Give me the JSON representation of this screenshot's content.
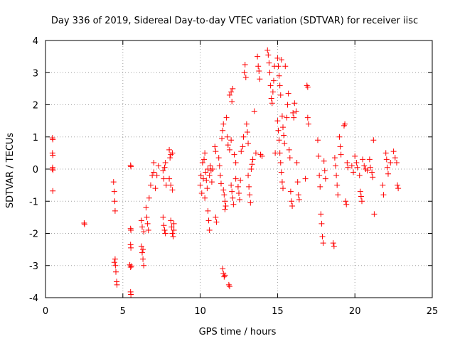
{
  "chart_data": {
    "type": "scatter",
    "title": "Day 336 of 2019, Sidereal Day-to-day VTEC variation (SDTVAR) for receiver iisc",
    "xlabel": "GPS time / hours",
    "ylabel": "SDTVAR / TECUs",
    "xlim": [
      0,
      25
    ],
    "ylim": [
      -4,
      4
    ],
    "xticks": [
      0,
      5,
      10,
      15,
      20,
      25
    ],
    "yticks": [
      -4,
      -3,
      -2,
      -1,
      0,
      1,
      2,
      3,
      4
    ],
    "grid": true,
    "marker": "+",
    "colors": {
      "points": "#ff0000",
      "grid": "#a0a0a0",
      "axes": "#000000"
    },
    "series": [
      {
        "name": "SDTVAR",
        "points": [
          [
            0.45,
            0.97
          ],
          [
            0.47,
            0.92
          ],
          [
            0.45,
            0.5
          ],
          [
            0.47,
            0.43
          ],
          [
            0.46,
            0.05
          ],
          [
            0.48,
            -0.03
          ],
          [
            0.45,
            0.0
          ],
          [
            0.47,
            -0.68
          ],
          [
            2.5,
            -1.68
          ],
          [
            2.52,
            -1.72
          ],
          [
            4.4,
            -0.4
          ],
          [
            4.45,
            -0.7
          ],
          [
            4.48,
            -1.0
          ],
          [
            4.5,
            -1.3
          ],
          [
            4.5,
            -2.8
          ],
          [
            4.52,
            -3.0
          ],
          [
            4.55,
            -3.2
          ],
          [
            4.6,
            -3.5
          ],
          [
            4.62,
            -3.6
          ],
          [
            4.45,
            -2.9
          ],
          [
            5.5,
            0.12
          ],
          [
            5.52,
            0.08
          ],
          [
            5.5,
            -1.85
          ],
          [
            5.52,
            -1.9
          ],
          [
            5.5,
            -2.35
          ],
          [
            5.52,
            -2.45
          ],
          [
            5.45,
            -2.98
          ],
          [
            5.5,
            -3.05
          ],
          [
            5.55,
            -3.02
          ],
          [
            5.5,
            -3.82
          ],
          [
            5.52,
            -3.9
          ],
          [
            6.2,
            -1.6
          ],
          [
            6.25,
            -1.8
          ],
          [
            6.2,
            -2.4
          ],
          [
            6.25,
            -2.6
          ],
          [
            6.3,
            -2.8
          ],
          [
            6.35,
            -3.0
          ],
          [
            6.3,
            -2.5
          ],
          [
            6.35,
            -1.95
          ],
          [
            6.5,
            -1.2
          ],
          [
            6.55,
            -1.5
          ],
          [
            6.6,
            -1.7
          ],
          [
            6.65,
            -1.9
          ],
          [
            6.7,
            -0.9
          ],
          [
            6.8,
            -0.5
          ],
          [
            6.9,
            -0.2
          ],
          [
            7.0,
            0.2
          ],
          [
            7.0,
            -0.1
          ],
          [
            7.1,
            -0.6
          ],
          [
            7.2,
            -0.2
          ],
          [
            7.3,
            0.1
          ],
          [
            7.6,
            -0.05
          ],
          [
            7.65,
            -0.3
          ],
          [
            7.7,
            0.05
          ],
          [
            7.75,
            0.2
          ],
          [
            7.8,
            -0.5
          ],
          [
            7.6,
            -1.5
          ],
          [
            7.65,
            -1.75
          ],
          [
            7.7,
            -1.9
          ],
          [
            7.75,
            -2.0
          ],
          [
            8.0,
            0.6
          ],
          [
            8.05,
            0.35
          ],
          [
            8.1,
            0.45
          ],
          [
            8.2,
            0.5
          ],
          [
            8.0,
            -0.3
          ],
          [
            8.1,
            -0.5
          ],
          [
            8.2,
            -0.65
          ],
          [
            8.1,
            -1.6
          ],
          [
            8.15,
            -1.8
          ],
          [
            8.2,
            -2.0
          ],
          [
            8.25,
            -2.1
          ],
          [
            8.3,
            -1.9
          ],
          [
            8.3,
            -1.7
          ],
          [
            10.0,
            -0.5
          ],
          [
            10.05,
            -0.2
          ],
          [
            10.1,
            -0.75
          ],
          [
            10.15,
            0.2
          ],
          [
            10.2,
            -0.3
          ],
          [
            10.25,
            0.3
          ],
          [
            10.3,
            0.5
          ],
          [
            10.3,
            -0.9
          ],
          [
            10.35,
            -0.1
          ],
          [
            10.4,
            -0.35
          ],
          [
            10.45,
            -0.6
          ],
          [
            10.5,
            0.0
          ],
          [
            10.5,
            -1.3
          ],
          [
            10.55,
            -1.6
          ],
          [
            10.6,
            -1.9
          ],
          [
            10.6,
            -0.2
          ],
          [
            10.65,
            0.1
          ],
          [
            10.7,
            -0.05
          ],
          [
            10.8,
            0.0
          ],
          [
            10.75,
            -0.4
          ],
          [
            10.95,
            0.7
          ],
          [
            11.0,
            0.55
          ],
          [
            11.0,
            -1.5
          ],
          [
            11.05,
            -1.65
          ],
          [
            11.2,
            0.35
          ],
          [
            11.25,
            0.1
          ],
          [
            11.3,
            -0.2
          ],
          [
            11.35,
            -0.45
          ],
          [
            11.4,
            0.95
          ],
          [
            11.45,
            1.2
          ],
          [
            11.5,
            1.4
          ],
          [
            11.5,
            -0.65
          ],
          [
            11.55,
            -0.8
          ],
          [
            11.6,
            -1.0
          ],
          [
            11.6,
            -1.25
          ],
          [
            11.65,
            -1.15
          ],
          [
            11.45,
            -3.1
          ],
          [
            11.5,
            -3.25
          ],
          [
            11.55,
            -3.35
          ],
          [
            11.6,
            -3.3
          ],
          [
            11.85,
            -3.6
          ],
          [
            11.9,
            -3.65
          ],
          [
            11.7,
            1.6
          ],
          [
            11.75,
            1.0
          ],
          [
            11.8,
            0.75
          ],
          [
            11.9,
            0.6
          ],
          [
            12.0,
            0.9
          ],
          [
            12.0,
            -0.5
          ],
          [
            12.05,
            -0.7
          ],
          [
            12.1,
            -0.9
          ],
          [
            12.15,
            -1.1
          ],
          [
            11.9,
            2.3
          ],
          [
            12.0,
            2.4
          ],
          [
            12.05,
            2.1
          ],
          [
            12.1,
            2.5
          ],
          [
            12.2,
            0.45
          ],
          [
            12.3,
            0.2
          ],
          [
            12.3,
            -0.3
          ],
          [
            12.45,
            -0.55
          ],
          [
            12.5,
            -0.75
          ],
          [
            12.55,
            -0.95
          ],
          [
            12.6,
            -0.35
          ],
          [
            12.65,
            0.55
          ],
          [
            12.75,
            0.7
          ],
          [
            12.8,
            1.0
          ],
          [
            12.85,
            3.0
          ],
          [
            12.9,
            3.25
          ],
          [
            12.95,
            2.85
          ],
          [
            13.0,
            1.4
          ],
          [
            13.05,
            1.15
          ],
          [
            13.1,
            0.8
          ],
          [
            13.1,
            -0.2
          ],
          [
            13.15,
            -0.55
          ],
          [
            13.2,
            -0.8
          ],
          [
            13.25,
            -1.05
          ],
          [
            13.3,
            0.0
          ],
          [
            13.35,
            0.15
          ],
          [
            13.4,
            0.3
          ],
          [
            13.5,
            1.8
          ],
          [
            13.6,
            0.5
          ],
          [
            13.7,
            3.5
          ],
          [
            13.75,
            3.2
          ],
          [
            13.8,
            3.05
          ],
          [
            13.85,
            2.8
          ],
          [
            13.9,
            0.45
          ],
          [
            14.0,
            0.4
          ],
          [
            14.35,
            3.7
          ],
          [
            14.4,
            3.55
          ],
          [
            14.45,
            3.3
          ],
          [
            14.5,
            3.0
          ],
          [
            14.55,
            2.6
          ],
          [
            14.6,
            2.2
          ],
          [
            14.65,
            2.05
          ],
          [
            14.7,
            2.4
          ],
          [
            14.75,
            2.75
          ],
          [
            14.8,
            3.2
          ],
          [
            14.85,
            0.5
          ],
          [
            15.0,
            3.45
          ],
          [
            15.05,
            3.2
          ],
          [
            15.1,
            2.9
          ],
          [
            15.15,
            2.6
          ],
          [
            15.2,
            2.3
          ],
          [
            15.25,
            3.4
          ],
          [
            15.3,
            1.65
          ],
          [
            15.35,
            1.3
          ],
          [
            15.4,
            1.05
          ],
          [
            15.45,
            0.8
          ],
          [
            15.5,
            3.2
          ],
          [
            15.0,
            1.5
          ],
          [
            15.05,
            1.2
          ],
          [
            15.1,
            0.9
          ],
          [
            15.15,
            0.5
          ],
          [
            15.2,
            0.2
          ],
          [
            15.25,
            -0.1
          ],
          [
            15.3,
            -0.4
          ],
          [
            15.35,
            -0.6
          ],
          [
            15.6,
            1.6
          ],
          [
            15.65,
            2.0
          ],
          [
            15.7,
            2.35
          ],
          [
            15.75,
            0.6
          ],
          [
            15.8,
            0.35
          ],
          [
            15.85,
            -0.7
          ],
          [
            15.9,
            -1.0
          ],
          [
            15.95,
            -1.15
          ],
          [
            16.0,
            1.75
          ],
          [
            16.05,
            1.6
          ],
          [
            16.1,
            2.05
          ],
          [
            16.2,
            1.8
          ],
          [
            16.25,
            0.2
          ],
          [
            16.3,
            -0.4
          ],
          [
            16.35,
            -0.8
          ],
          [
            16.4,
            -0.95
          ],
          [
            16.8,
            -0.3
          ],
          [
            16.9,
            2.6
          ],
          [
            16.95,
            2.55
          ],
          [
            16.95,
            1.6
          ],
          [
            17.0,
            1.4
          ],
          [
            17.6,
            0.9
          ],
          [
            17.65,
            0.4
          ],
          [
            17.7,
            -0.2
          ],
          [
            17.75,
            -0.55
          ],
          [
            17.8,
            -1.4
          ],
          [
            17.85,
            -1.7
          ],
          [
            17.9,
            -2.1
          ],
          [
            17.95,
            -2.3
          ],
          [
            18.0,
            0.25
          ],
          [
            18.05,
            -0.05
          ],
          [
            18.1,
            -0.3
          ],
          [
            18.6,
            -2.3
          ],
          [
            18.65,
            -2.4
          ],
          [
            18.7,
            0.35
          ],
          [
            18.75,
            0.1
          ],
          [
            18.8,
            -0.2
          ],
          [
            18.85,
            -0.5
          ],
          [
            18.9,
            -0.8
          ],
          [
            19.0,
            1.0
          ],
          [
            19.05,
            0.7
          ],
          [
            19.1,
            0.45
          ],
          [
            19.3,
            1.35
          ],
          [
            19.35,
            1.4
          ],
          [
            19.4,
            -1.0
          ],
          [
            19.45,
            -1.1
          ],
          [
            19.5,
            0.2
          ],
          [
            19.55,
            0.05
          ],
          [
            19.8,
            0.1
          ],
          [
            19.9,
            -0.1
          ],
          [
            20.0,
            0.4
          ],
          [
            20.1,
            0.2
          ],
          [
            20.15,
            0.05
          ],
          [
            20.3,
            -0.2
          ],
          [
            20.35,
            -0.7
          ],
          [
            20.4,
            -0.85
          ],
          [
            20.45,
            -1.0
          ],
          [
            20.5,
            0.3
          ],
          [
            20.6,
            0.1
          ],
          [
            20.7,
            0.0
          ],
          [
            20.8,
            -0.05
          ],
          [
            20.95,
            0.3
          ],
          [
            21.0,
            0.05
          ],
          [
            21.1,
            -0.1
          ],
          [
            21.15,
            -0.25
          ],
          [
            21.2,
            0.9
          ],
          [
            21.25,
            -1.4
          ],
          [
            21.8,
            -0.5
          ],
          [
            21.85,
            -0.8
          ],
          [
            22.0,
            0.5
          ],
          [
            22.05,
            0.3
          ],
          [
            22.1,
            0.05
          ],
          [
            22.15,
            -0.15
          ],
          [
            22.3,
            0.2
          ],
          [
            22.5,
            0.55
          ],
          [
            22.6,
            0.35
          ],
          [
            22.7,
            0.2
          ],
          [
            22.75,
            -0.5
          ],
          [
            22.8,
            -0.6
          ]
        ]
      }
    ]
  }
}
